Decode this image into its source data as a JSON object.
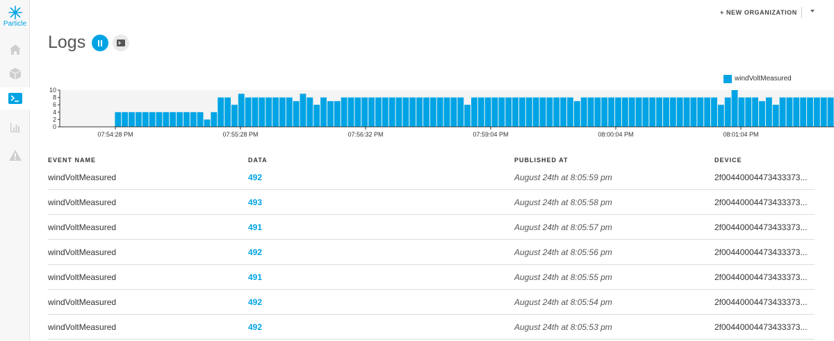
{
  "brand": {
    "name": "Particle",
    "accent": "#00a4e4"
  },
  "sidebar": {
    "items": [
      {
        "icon": "home-icon"
      },
      {
        "icon": "cube-icon"
      },
      {
        "icon": "terminal-icon",
        "active": true
      },
      {
        "icon": "bar-chart-icon"
      },
      {
        "icon": "warning-icon"
      }
    ]
  },
  "header": {
    "new_org": "+ NEW ORGANIZATION"
  },
  "page": {
    "title": "Logs"
  },
  "chart_data": {
    "type": "bar",
    "series": [
      {
        "name": "windVoltMeasured",
        "color": "#00a4e4",
        "values": [
          0,
          0,
          0,
          0,
          0,
          0,
          0,
          0,
          4,
          4,
          4,
          4,
          4,
          4,
          4,
          4,
          4,
          4,
          4,
          4,
          4,
          2,
          4,
          8,
          8,
          6,
          9,
          8,
          8,
          8,
          8,
          8,
          8,
          8,
          7,
          9,
          8,
          6,
          8,
          7,
          7,
          8,
          8,
          8,
          8,
          8,
          8,
          8,
          8,
          8,
          8,
          8,
          8,
          8,
          8,
          8,
          8,
          8,
          8,
          6,
          8,
          8,
          8,
          8,
          8,
          8,
          8,
          8,
          8,
          8,
          8,
          8,
          8,
          8,
          8,
          7,
          8,
          8,
          8,
          8,
          8,
          8,
          8,
          8,
          8,
          8,
          8,
          8,
          8,
          8,
          8,
          8,
          8,
          8,
          8,
          8,
          6,
          8,
          10,
          8,
          8,
          8,
          7,
          8,
          6,
          8,
          8,
          8,
          8,
          8,
          8,
          8,
          8
        ]
      }
    ],
    "y_ticks": [
      0,
      2,
      4,
      6,
      8,
      10
    ],
    "ylim": [
      0,
      10
    ],
    "x_tick_labels": [
      "07:54:28 PM",
      "07:55:28 PM",
      "07:56:32 PM",
      "07:59:04 PM",
      "08:00:04 PM",
      "08:01:04 PM"
    ],
    "x_tick_indices": [
      2,
      17,
      32,
      47,
      62,
      77
    ],
    "legend_position": "top-right"
  },
  "table": {
    "headers": {
      "event": "EVENT NAME",
      "data": "DATA",
      "published": "PUBLISHED AT",
      "device": "DEVICE"
    },
    "rows": [
      {
        "event": "windVoltMeasured",
        "data": "492",
        "published": "August 24th at 8:05:59 pm",
        "device": "2f00440004473433373..."
      },
      {
        "event": "windVoltMeasured",
        "data": "493",
        "published": "August 24th at 8:05:58 pm",
        "device": "2f00440004473433373..."
      },
      {
        "event": "windVoltMeasured",
        "data": "491",
        "published": "August 24th at 8:05:57 pm",
        "device": "2f00440004473433373..."
      },
      {
        "event": "windVoltMeasured",
        "data": "492",
        "published": "August 24th at 8:05:56 pm",
        "device": "2f00440004473433373..."
      },
      {
        "event": "windVoltMeasured",
        "data": "491",
        "published": "August 24th at 8:05:55 pm",
        "device": "2f00440004473433373..."
      },
      {
        "event": "windVoltMeasured",
        "data": "492",
        "published": "August 24th at 8:05:54 pm",
        "device": "2f00440004473433373..."
      },
      {
        "event": "windVoltMeasured",
        "data": "492",
        "published": "August 24th at 8:05:53 pm",
        "device": "2f00440004473433373..."
      }
    ]
  }
}
